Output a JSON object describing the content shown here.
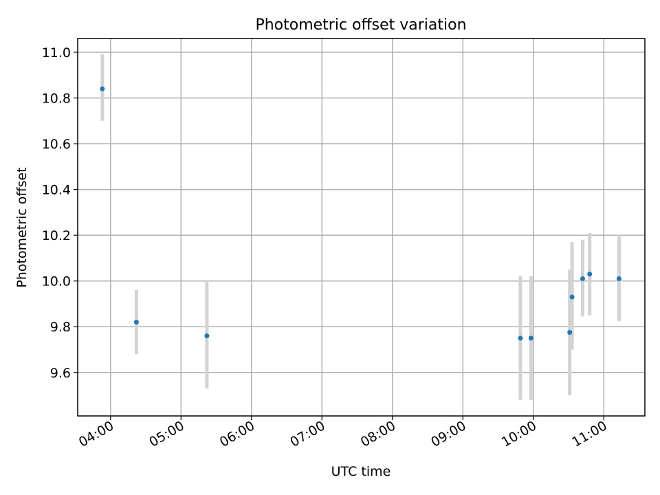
{
  "chart_data": {
    "type": "scatter",
    "title": "Photometric offset variation",
    "xlabel": "UTC time",
    "ylabel": "Photometric offset",
    "xlim": [
      "03:32",
      "11:35"
    ],
    "ylim": [
      9.41,
      11.06
    ],
    "x_ticks": [
      "04:00",
      "05:00",
      "06:00",
      "07:00",
      "08:00",
      "09:00",
      "10:00",
      "11:00"
    ],
    "y_ticks": [
      "9.6",
      "9.8",
      "10.0",
      "10.2",
      "10.4",
      "10.6",
      "10.8",
      "11.0"
    ],
    "grid": true,
    "point_color": "#1f77b4",
    "errorbar_color": "#d3d3d3",
    "points": [
      {
        "x": "03:53",
        "y": 10.84,
        "ylow": 10.7,
        "yhigh": 10.99
      },
      {
        "x": "04:22",
        "y": 9.82,
        "ylow": 9.68,
        "yhigh": 9.96
      },
      {
        "x": "05:22",
        "y": 9.76,
        "ylow": 9.53,
        "yhigh": 10.0
      },
      {
        "x": "09:49",
        "y": 9.75,
        "ylow": 9.48,
        "yhigh": 10.02
      },
      {
        "x": "09:58",
        "y": 9.75,
        "ylow": 9.48,
        "yhigh": 10.02
      },
      {
        "x": "10:31",
        "y": 9.775,
        "ylow": 9.5,
        "yhigh": 10.05
      },
      {
        "x": "10:33",
        "y": 9.93,
        "ylow": 9.7,
        "yhigh": 10.17
      },
      {
        "x": "10:42",
        "y": 10.01,
        "ylow": 9.845,
        "yhigh": 10.18
      },
      {
        "x": "10:48",
        "y": 10.03,
        "ylow": 9.85,
        "yhigh": 10.21
      },
      {
        "x": "11:13",
        "y": 10.01,
        "ylow": 9.825,
        "yhigh": 10.2
      }
    ]
  }
}
